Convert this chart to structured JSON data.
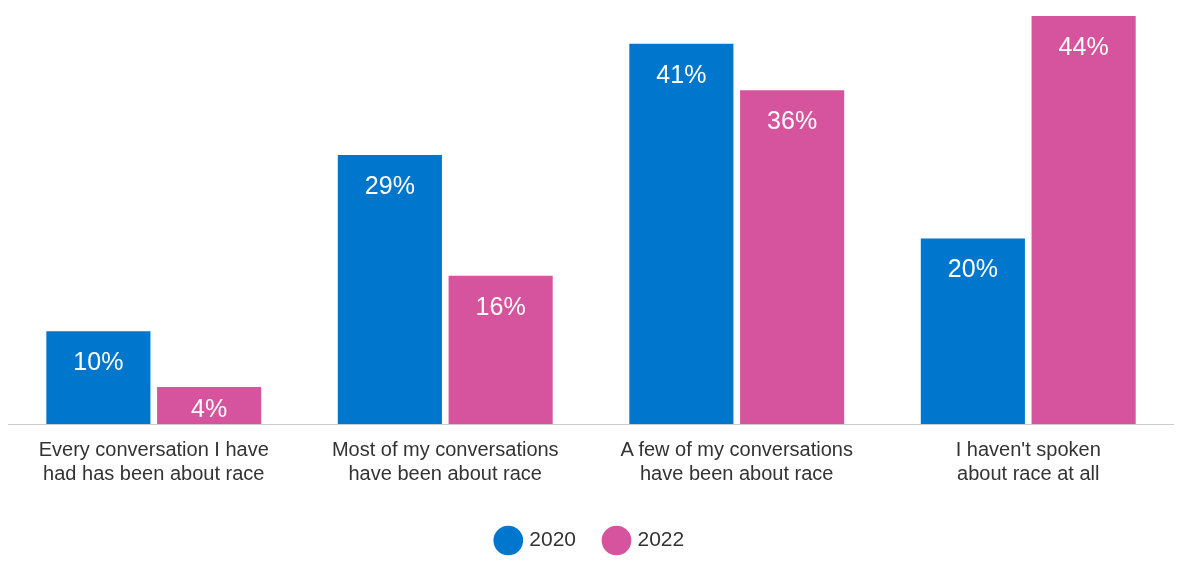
{
  "chart_data": {
    "type": "bar",
    "categories": [
      "Every conversation I have had has been about race",
      "Most of my conversations have been about race",
      "A few of my conversations have been about race",
      "I haven't spoken about race at all"
    ],
    "series": [
      {
        "name": "2020",
        "color": "#0077cc",
        "values": [
          10,
          29,
          41,
          20
        ],
        "value_labels": [
          "10%",
          "29%",
          "41%",
          "20%"
        ]
      },
      {
        "name": "2022",
        "color": "#d6549e",
        "values": [
          4,
          16,
          36,
          44
        ],
        "value_labels": [
          "4%",
          "16%",
          "36%",
          "44%"
        ]
      }
    ],
    "legend": "bottom",
    "grid": false
  }
}
